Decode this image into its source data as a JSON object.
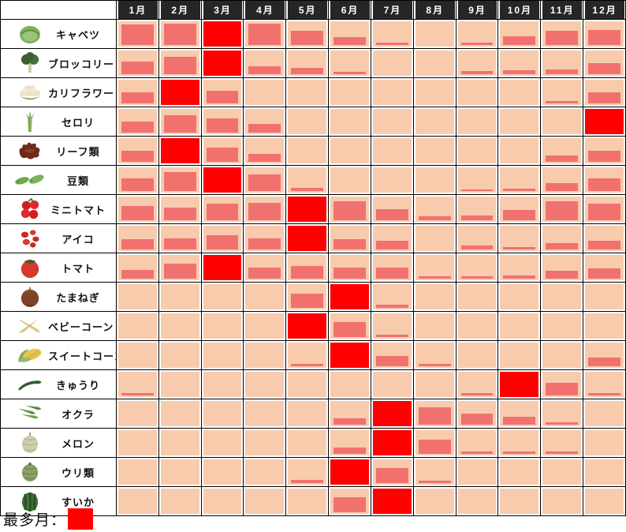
{
  "colors": {
    "header_bg": "#262626",
    "header_text": "#FFFFFF",
    "cell_bg": "#F8CBAD",
    "bar": "#F1716F",
    "max": "#FF0000",
    "grid": "#000000"
  },
  "chart_data": {
    "type": "heatmap",
    "months": [
      "1月",
      "2月",
      "3月",
      "4月",
      "5月",
      "6月",
      "7月",
      "8月",
      "9月",
      "10月",
      "11月",
      "12月"
    ],
    "value_note": "values are relative harvest-amount bar heights (0-1 of cell height); the max month cell is filled solid red",
    "rows": [
      {
        "label": "キャベツ",
        "icon": "cabbage-icon",
        "values": [
          0.8,
          0.85,
          1,
          0.85,
          0.55,
          0.3,
          0.1,
          0,
          0.1,
          0.35,
          0.55,
          0.6
        ],
        "max_index": 2,
        "max_month": "3月"
      },
      {
        "label": "ブロッコリー",
        "icon": "broccoli-icon",
        "values": [
          0.5,
          0.7,
          1,
          0.3,
          0.25,
          0.1,
          0,
          0,
          0.12,
          0.15,
          0.2,
          0.45
        ],
        "max_index": 2,
        "max_month": "3月"
      },
      {
        "label": "カリフラワー",
        "icon": "cauliflower-icon",
        "values": [
          0.45,
          1,
          0.5,
          0,
          0,
          0,
          0,
          0,
          0,
          0,
          0.1,
          0.45
        ],
        "max_index": 1,
        "max_month": "2月"
      },
      {
        "label": "セロリ",
        "icon": "celery-icon",
        "values": [
          0.45,
          0.7,
          0.55,
          0.35,
          0,
          0,
          0,
          0,
          0,
          0,
          0,
          1
        ],
        "max_index": 11,
        "max_month": "12月"
      },
      {
        "label": "リーフ類",
        "icon": "leaf-lettuce-icon",
        "values": [
          0.45,
          1,
          0.55,
          0.3,
          0,
          0,
          0,
          0,
          0,
          0,
          0.25,
          0.45
        ],
        "max_index": 1,
        "max_month": "2月"
      },
      {
        "label": "豆類",
        "icon": "beans-icon",
        "values": [
          0.5,
          0.75,
          1,
          0.65,
          0.12,
          0,
          0,
          0,
          0.06,
          0.08,
          0.3,
          0.5
        ],
        "max_index": 2,
        "max_month": "3月"
      },
      {
        "label": "ミニトマト",
        "icon": "mini-tomato-icon",
        "values": [
          0.55,
          0.5,
          0.65,
          0.7,
          1,
          0.75,
          0.45,
          0.15,
          0.18,
          0.4,
          0.75,
          0.65
        ],
        "max_index": 4,
        "max_month": "5月"
      },
      {
        "label": "アイコ",
        "icon": "aiko-tomato-icon",
        "values": [
          0.4,
          0.45,
          0.55,
          0.45,
          1,
          0.4,
          0.35,
          0,
          0.15,
          0.1,
          0.25,
          0.35
        ],
        "max_index": 4,
        "max_month": "5月"
      },
      {
        "label": "トマト",
        "icon": "tomato-icon",
        "values": [
          0.35,
          0.6,
          1,
          0.45,
          0.5,
          0.45,
          0.45,
          0.1,
          0.1,
          0.12,
          0.3,
          0.4
        ],
        "max_index": 2,
        "max_month": "3月"
      },
      {
        "label": "たまねぎ",
        "icon": "onion-icon",
        "values": [
          0,
          0,
          0,
          0,
          0.55,
          1,
          0.12,
          0,
          0,
          0,
          0,
          0
        ],
        "max_index": 5,
        "max_month": "6月"
      },
      {
        "label": "ベビーコーン",
        "icon": "baby-corn-icon",
        "values": [
          0,
          0,
          0,
          0,
          1,
          0.6,
          0.08,
          0,
          0,
          0,
          0,
          0
        ],
        "max_index": 4,
        "max_month": "5月"
      },
      {
        "label": "スイートコーン",
        "icon": "sweet-corn-icon",
        "values": [
          0,
          0,
          0,
          0,
          0.08,
          1,
          0.4,
          0.08,
          0,
          0,
          0,
          0.35
        ],
        "max_index": 5,
        "max_month": "6月"
      },
      {
        "label": "きゅうり",
        "icon": "cucumber-icon",
        "values": [
          0.08,
          0,
          0,
          0,
          0,
          0,
          0,
          0,
          0.1,
          1,
          0.5,
          0.1
        ],
        "max_index": 9,
        "max_month": "10月"
      },
      {
        "label": "オクラ",
        "icon": "okra-icon",
        "values": [
          0,
          0,
          0,
          0,
          0,
          0.25,
          1,
          0.7,
          0.45,
          0.3,
          0.1,
          0
        ],
        "max_index": 6,
        "max_month": "7月"
      },
      {
        "label": "メロン",
        "icon": "melon-icon",
        "values": [
          0,
          0,
          0,
          0,
          0,
          0.25,
          1,
          0.55,
          0.1,
          0.08,
          0.1,
          0
        ],
        "max_index": 6,
        "max_month": "7月"
      },
      {
        "label": "ウリ類",
        "icon": "gourd-icon",
        "values": [
          0,
          0,
          0,
          0,
          0.12,
          1,
          0.6,
          0.08,
          0,
          0,
          0,
          0
        ],
        "max_index": 5,
        "max_month": "6月"
      },
      {
        "label": "すいか",
        "icon": "watermelon-icon",
        "values": [
          0,
          0,
          0,
          0,
          0,
          0.6,
          1,
          0,
          0,
          0,
          0,
          0
        ],
        "max_index": 6,
        "max_month": "7月"
      }
    ],
    "legend_position": "bottom-left",
    "grid": true
  },
  "legend": {
    "label": "最多月：",
    "swatch_color": "#FF0000"
  }
}
